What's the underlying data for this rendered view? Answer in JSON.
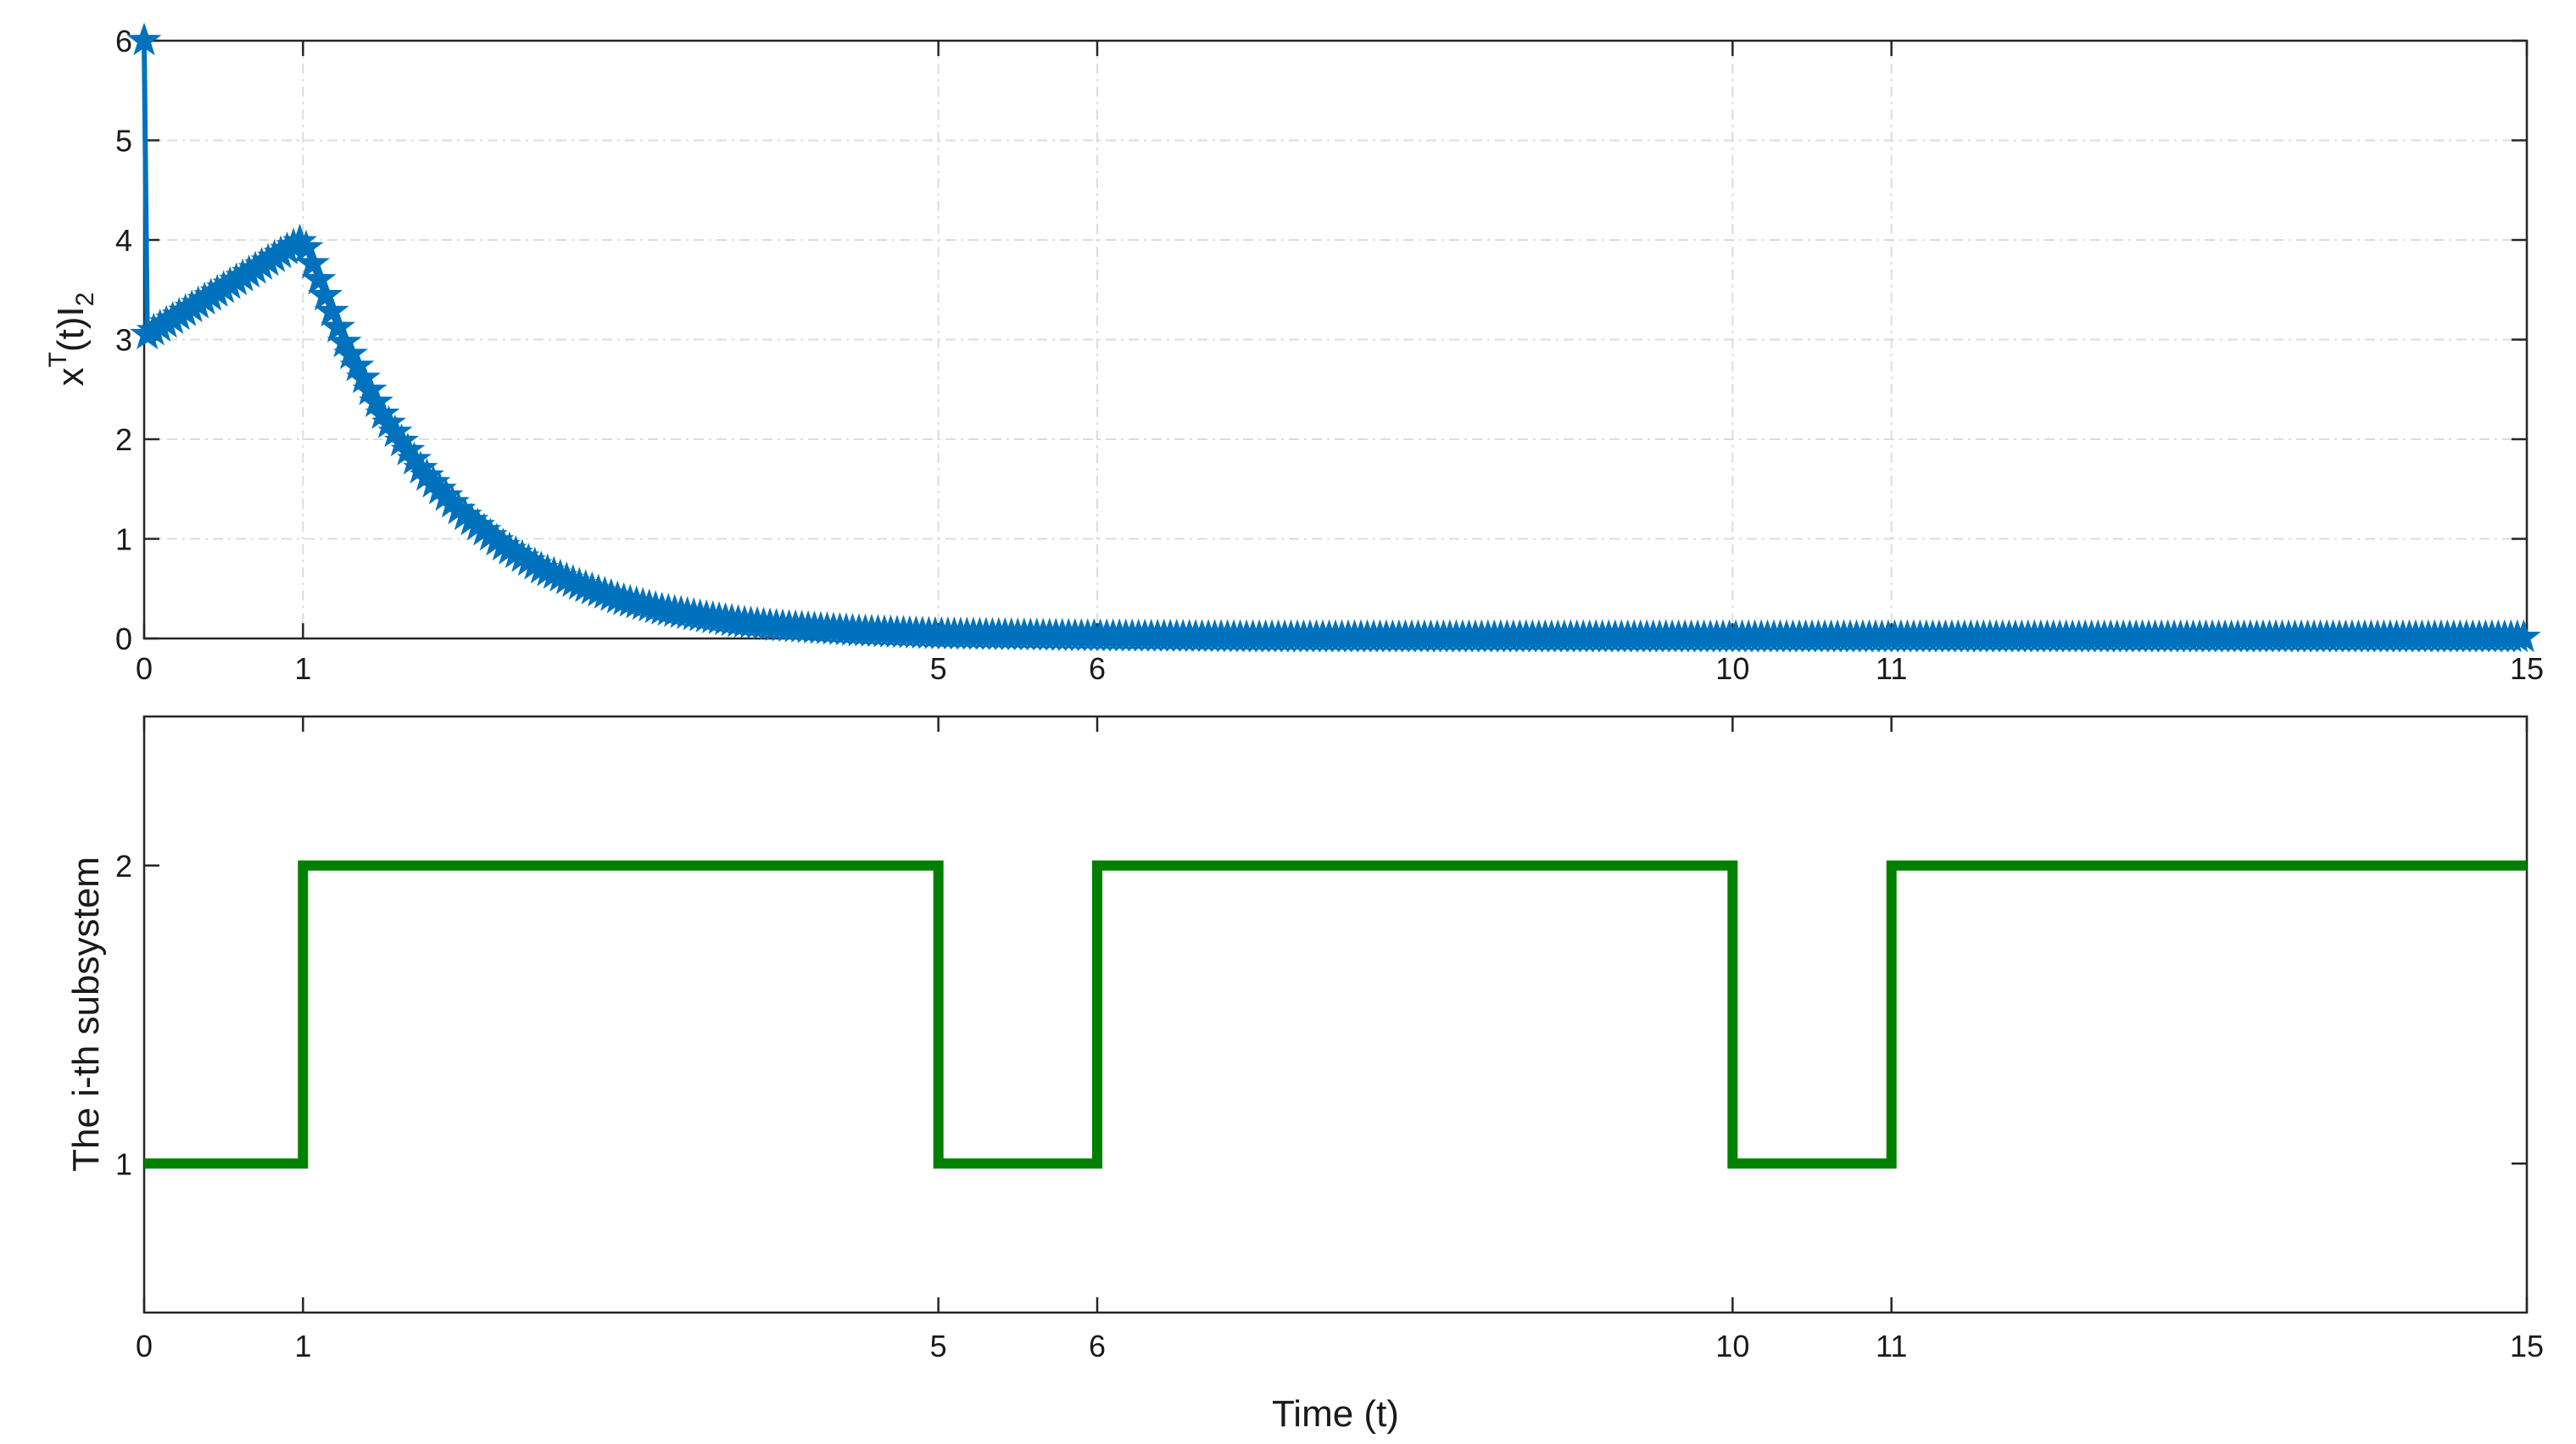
{
  "chart_data": [
    {
      "type": "line",
      "xlabel": "",
      "ylabel": {
        "main": "x",
        "sup": "T",
        "mid": "(t)I",
        "sub": "2"
      },
      "xlim": [
        0,
        15
      ],
      "ylim": [
        0,
        6
      ],
      "xticks": [
        0,
        1,
        5,
        6,
        10,
        11,
        15
      ],
      "yticks": [
        0,
        1,
        2,
        3,
        4,
        5,
        6
      ],
      "grid": true,
      "marker": "star",
      "series": [
        {
          "color": "#0072bd",
          "x": [
            0,
            0.02,
            1,
            1.25,
            1.5,
            1.75,
            2,
            2.25,
            2.5,
            2.75,
            3,
            3.25,
            3.5,
            3.75,
            4,
            4.5,
            5,
            6,
            7,
            8,
            9,
            10,
            11,
            12,
            13,
            14,
            15
          ],
          "y": [
            6,
            3.05,
            4.0,
            3.0,
            2.25,
            1.68,
            1.26,
            0.94,
            0.7,
            0.53,
            0.39,
            0.29,
            0.22,
            0.16,
            0.12,
            0.07,
            0.04,
            0.02,
            0.01,
            0.01,
            0.01,
            0.01,
            0.01,
            0.01,
            0.01,
            0.01,
            0.01
          ]
        }
      ]
    },
    {
      "type": "line",
      "xlabel": "Time (t)",
      "ylabel": "The i-th subsystem",
      "xlim": [
        0,
        15
      ],
      "ylim": [
        0.5,
        2.5
      ],
      "xticks": [
        0,
        1,
        5,
        6,
        10,
        11,
        15
      ],
      "yticks": [
        1,
        2
      ],
      "grid": false,
      "series": [
        {
          "color": "#008000",
          "step": true,
          "x": [
            0,
            1,
            1,
            5,
            5,
            6,
            6,
            10,
            10,
            11,
            11,
            15
          ],
          "y": [
            1,
            1,
            2,
            2,
            1,
            1,
            2,
            2,
            1,
            1,
            2,
            2
          ]
        }
      ]
    }
  ]
}
